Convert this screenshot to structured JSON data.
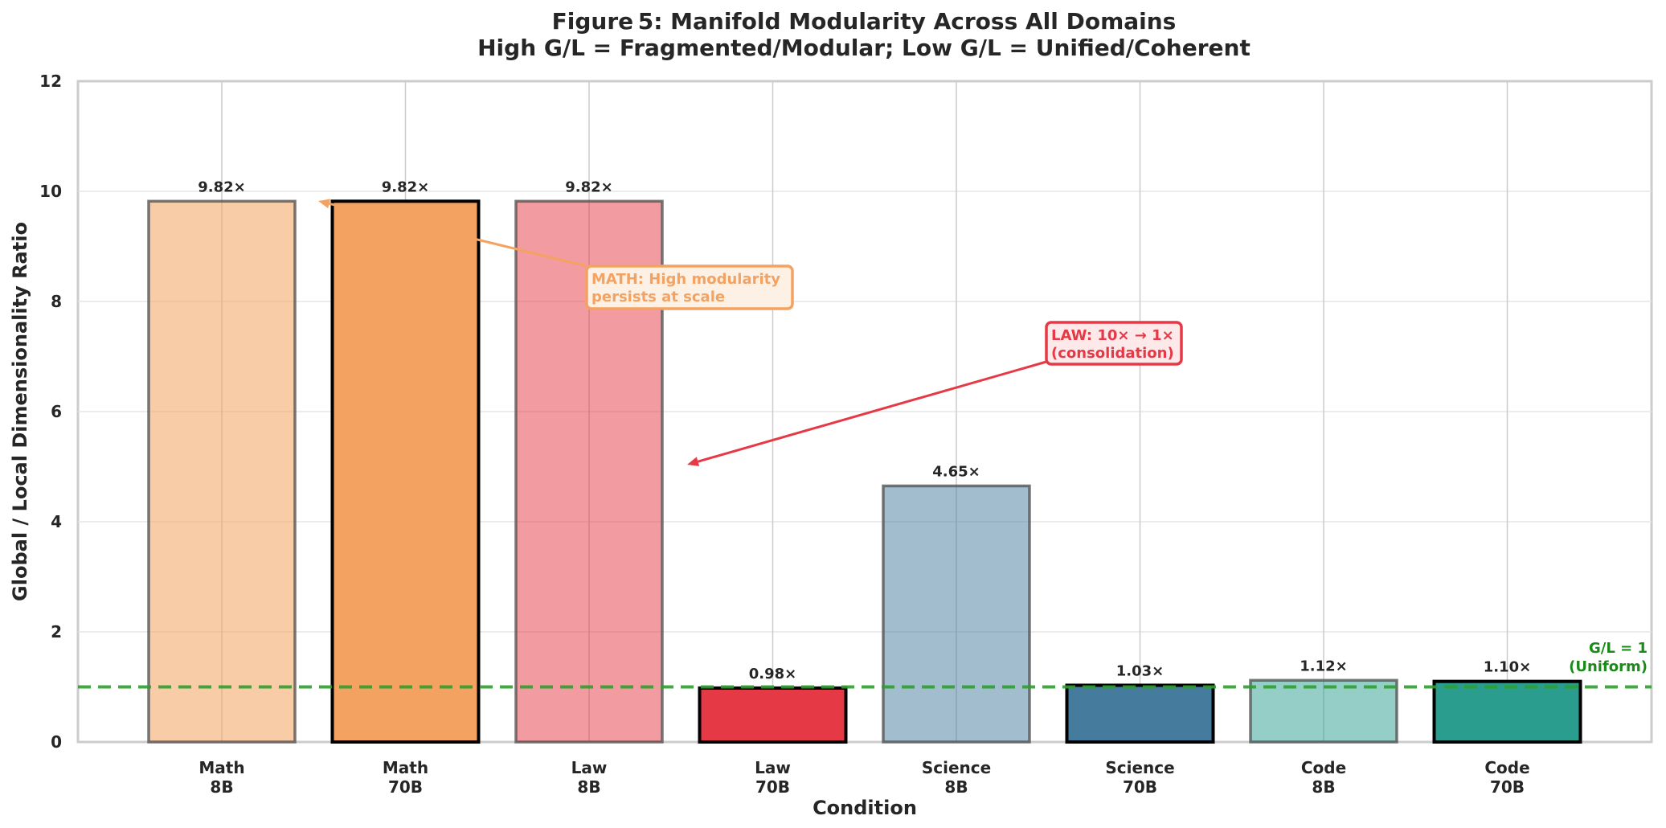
{
  "chart_data": {
    "type": "bar",
    "title_line1": "Figure 5:  Manifold Modularity Across All Domains",
    "title_line2": "High G/L = Fragmented/Modular; Low G/L = Unified/Coherent",
    "xlabel": "Condition",
    "ylabel": "Global / Local Dimensionality Ratio",
    "ylim": [
      0,
      12
    ],
    "yticks": [
      "0",
      "2",
      "4",
      "6",
      "8",
      "10",
      "12"
    ],
    "grid": true,
    "categories": [
      {
        "line1": "Math",
        "line2": "8B"
      },
      {
        "line1": "Math",
        "line2": "70B"
      },
      {
        "line1": "Law",
        "line2": "8B"
      },
      {
        "line1": "Law",
        "line2": "70B"
      },
      {
        "line1": "Science",
        "line2": "8B"
      },
      {
        "line1": "Science",
        "line2": "70B"
      },
      {
        "line1": "Code",
        "line2": "8B"
      },
      {
        "line1": "Code",
        "line2": "70B"
      }
    ],
    "values": [
      9.82,
      9.82,
      9.82,
      0.98,
      4.65,
      1.03,
      1.12,
      1.1
    ],
    "value_labels": [
      "9.82×",
      "9.82×",
      "9.82×",
      "0.98×",
      "4.65×",
      "1.03×",
      "1.12×",
      "1.10×"
    ],
    "colors": [
      "#f4a261",
      "#f4a261",
      "#e63946",
      "#e63946",
      "#457b9d",
      "#457b9d",
      "#2a9d8f",
      "#2a9d8f"
    ],
    "bar_opacity": [
      0.55,
      1.0,
      0.5,
      1.0,
      0.5,
      1.0,
      0.5,
      1.0
    ],
    "reference_line": {
      "y": 1,
      "color": "#2ca02c",
      "label_line1": "G/L = 1",
      "label_line2": "(Uniform)"
    },
    "annotations": [
      {
        "name": "math-annotation",
        "line1": "MATH: High modularity",
        "line2": "persists at scale",
        "color": "#f4a261",
        "bg": "#fdf0e4",
        "points_to_bar": 0,
        "arrow_y": 9.82
      },
      {
        "name": "law-annotation",
        "line1": "LAW: 10× → 1×",
        "line2": "(consolidation)",
        "color": "#e63946",
        "bg": "#fde8ea",
        "points_to_bar": 2,
        "arrow_y": 5.0
      }
    ]
  }
}
